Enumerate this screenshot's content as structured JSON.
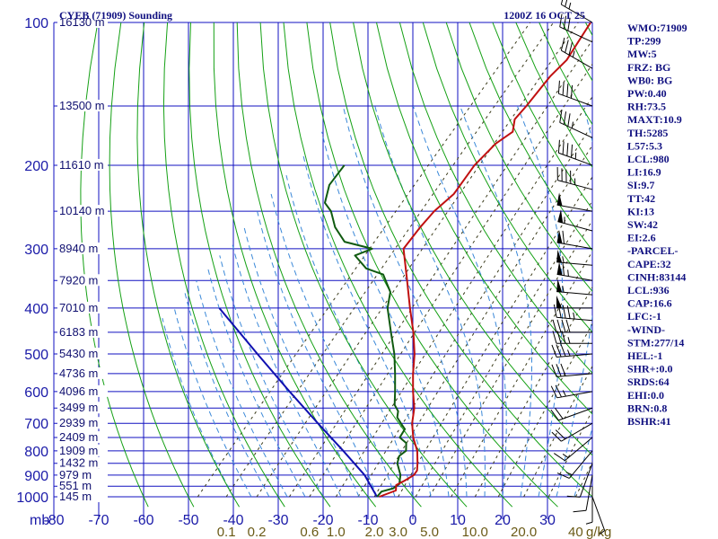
{
  "header": {
    "station": "CYEB (71909) Sounding",
    "time": "1200Z 16 OCT 25"
  },
  "indices": [
    "WMO:71909",
    "TP:299",
    "MW:5",
    "FRZ: BG",
    "WB0: BG",
    "PW:0.40",
    "RH:73.5",
    "MAXT:10.9",
    "TH:5285",
    "L57:5.3",
    "LCL:980",
    "LI:16.9",
    "SI:9.7",
    "TT:42",
    "KI:13",
    "SW:42",
    "EI:2.6",
    "-PARCEL-",
    "CAPE:32",
    "CINH:83144",
    "LCL:936",
    "CAP:16.6",
    "LFC:-1",
    "-WIND-",
    "STM:277/14",
    "HEL:-1",
    "SHR+:0.0",
    "SRDS:64",
    "EHI:0.0",
    "BRN:0.8",
    "BSHR:41"
  ],
  "colors": {
    "grid": "#1010c0",
    "temperature": "#c01010",
    "dewpoint": "#105a10",
    "parcel": "#1010b0",
    "dry_adiabat": "#14a014",
    "moist_adiabat": "#3a88d8",
    "mixing_ratio": "#3a3a1a",
    "wind_barbs": "#000000"
  },
  "chart_data": {
    "type": "skew-t",
    "pressure_levels": [
      {
        "p": 100,
        "label": "100",
        "height": "16130 m"
      },
      {
        "p": 150,
        "label": "",
        "height": "13500 m"
      },
      {
        "p": 200,
        "label": "200",
        "height": "11610 m"
      },
      {
        "p": 250,
        "label": "",
        "height": "10140 m"
      },
      {
        "p": 300,
        "label": "300",
        "height": "8940 m"
      },
      {
        "p": 350,
        "label": "",
        "height": "7920 m"
      },
      {
        "p": 400,
        "label": "400",
        "height": "7010 m"
      },
      {
        "p": 450,
        "label": "",
        "height": "6183 m"
      },
      {
        "p": 500,
        "label": "500",
        "height": "5430 m"
      },
      {
        "p": 550,
        "label": "",
        "height": "4736 m"
      },
      {
        "p": 600,
        "label": "600",
        "height": "4096 m"
      },
      {
        "p": 650,
        "label": "",
        "height": "3499 m"
      },
      {
        "p": 700,
        "label": "700",
        "height": "2939 m"
      },
      {
        "p": 750,
        "label": "",
        "height": "2409 m"
      },
      {
        "p": 800,
        "label": "800",
        "height": "1909 m"
      },
      {
        "p": 850,
        "label": "",
        "height": "1432 m"
      },
      {
        "p": 900,
        "label": "900",
        "height": "979 m"
      },
      {
        "p": 950,
        "label": "",
        "height": "551 m"
      },
      {
        "p": 1000,
        "label": "1000",
        "height": "145 m"
      }
    ],
    "pressure_unit": "mb",
    "temperature_ticks": [
      "-80",
      "-70",
      "-60",
      "-50",
      "-40",
      "-30",
      "-20",
      "-10",
      "0",
      "10",
      "20",
      "30"
    ],
    "temperature_tick_values": [
      -80,
      -70,
      -60,
      -50,
      -40,
      -30,
      -20,
      -10,
      0,
      10,
      20,
      30
    ],
    "mixing_ratio_labels": [
      {
        "value": 0.1,
        "label": "0.1"
      },
      {
        "value": 0.2,
        "label": "0.2"
      },
      {
        "value": 0.6,
        "label": "0.6"
      },
      {
        "value": 1.0,
        "label": "1.0"
      },
      {
        "value": 2.0,
        "label": "2.0"
      },
      {
        "value": 3.0,
        "label": "3.0"
      },
      {
        "value": 5.0,
        "label": "5.0"
      },
      {
        "value": 10.0,
        "label": "10.0"
      },
      {
        "value": 20.0,
        "label": "20.0"
      },
      {
        "value": 40.0,
        "label": "40"
      }
    ],
    "mixing_ratio_unit": "g/kg",
    "temperature_profile": [
      {
        "p": 1000,
        "t": -7.5
      },
      {
        "p": 970,
        "t": -5.0
      },
      {
        "p": 945,
        "t": -6.0
      },
      {
        "p": 925,
        "t": -5.0
      },
      {
        "p": 900,
        "t": -4.0
      },
      {
        "p": 880,
        "t": -4.2
      },
      {
        "p": 850,
        "t": -5.5
      },
      {
        "p": 800,
        "t": -8.0
      },
      {
        "p": 750,
        "t": -11.5
      },
      {
        "p": 700,
        "t": -14.5
      },
      {
        "p": 650,
        "t": -17.0
      },
      {
        "p": 600,
        "t": -20.5
      },
      {
        "p": 550,
        "t": -24.0
      },
      {
        "p": 500,
        "t": -27.5
      },
      {
        "p": 450,
        "t": -32.0
      },
      {
        "p": 400,
        "t": -37.5
      },
      {
        "p": 350,
        "t": -43.5
      },
      {
        "p": 300,
        "t": -50.5
      },
      {
        "p": 270,
        "t": -51.0
      },
      {
        "p": 250,
        "t": -51.0
      },
      {
        "p": 230,
        "t": -50.0
      },
      {
        "p": 200,
        "t": -51.0
      },
      {
        "p": 180,
        "t": -50.5
      },
      {
        "p": 170,
        "t": -49.0
      },
      {
        "p": 160,
        "t": -51.0
      },
      {
        "p": 150,
        "t": -51.0
      },
      {
        "p": 130,
        "t": -51.5
      },
      {
        "p": 120,
        "t": -51.0
      },
      {
        "p": 100,
        "t": -53.0
      }
    ],
    "dewpoint_profile": [
      {
        "p": 1000,
        "t": -8.0
      },
      {
        "p": 975,
        "t": -8.0
      },
      {
        "p": 960,
        "t": -6.0
      },
      {
        "p": 940,
        "t": -5.5
      },
      {
        "p": 900,
        "t": -7.0
      },
      {
        "p": 850,
        "t": -10.0
      },
      {
        "p": 820,
        "t": -11.0
      },
      {
        "p": 800,
        "t": -10.5
      },
      {
        "p": 770,
        "t": -12.0
      },
      {
        "p": 750,
        "t": -14.5
      },
      {
        "p": 720,
        "t": -15.0
      },
      {
        "p": 700,
        "t": -17.0
      },
      {
        "p": 680,
        "t": -19.0
      },
      {
        "p": 660,
        "t": -20.0
      },
      {
        "p": 640,
        "t": -22.0
      },
      {
        "p": 600,
        "t": -24.5
      },
      {
        "p": 550,
        "t": -28.0
      },
      {
        "p": 500,
        "t": -32.0
      },
      {
        "p": 450,
        "t": -37.0
      },
      {
        "p": 400,
        "t": -42.5
      },
      {
        "p": 370,
        "t": -45.0
      },
      {
        "p": 340,
        "t": -50.0
      },
      {
        "p": 330,
        "t": -55.0
      },
      {
        "p": 310,
        "t": -60.0
      },
      {
        "p": 300,
        "t": -57.5
      },
      {
        "p": 290,
        "t": -65.0
      },
      {
        "p": 270,
        "t": -70.0
      },
      {
        "p": 250,
        "t": -74.0
      },
      {
        "p": 240,
        "t": -77.0
      },
      {
        "p": 220,
        "t": -79.5
      },
      {
        "p": 200,
        "t": -80.0
      }
    ],
    "parcel_path": [
      {
        "p": 1000,
        "t": -8.0
      },
      {
        "p": 900,
        "t": -15.0
      },
      {
        "p": 800,
        "t": -24.5
      },
      {
        "p": 700,
        "t": -35.5
      },
      {
        "p": 600,
        "t": -48.0
      },
      {
        "p": 500,
        "t": -62.5
      },
      {
        "p": 400,
        "t": -80.0
      }
    ],
    "wind_barbs": [
      {
        "p": 100,
        "dir": 300,
        "spd": 25
      },
      {
        "p": 110,
        "dir": 295,
        "spd": 30
      },
      {
        "p": 125,
        "dir": 300,
        "spd": 35
      },
      {
        "p": 150,
        "dir": 290,
        "spd": 40
      },
      {
        "p": 175,
        "dir": 295,
        "spd": 35
      },
      {
        "p": 200,
        "dir": 290,
        "spd": 45
      },
      {
        "p": 225,
        "dir": 285,
        "spd": 45
      },
      {
        "p": 250,
        "dir": 280,
        "spd": 50
      },
      {
        "p": 275,
        "dir": 285,
        "spd": 55
      },
      {
        "p": 300,
        "dir": 280,
        "spd": 60
      },
      {
        "p": 325,
        "dir": 275,
        "spd": 55
      },
      {
        "p": 350,
        "dir": 280,
        "spd": 65
      },
      {
        "p": 375,
        "dir": 275,
        "spd": 55
      },
      {
        "p": 400,
        "dir": 270,
        "spd": 50
      },
      {
        "p": 425,
        "dir": 275,
        "spd": 45
      },
      {
        "p": 450,
        "dir": 270,
        "spd": 40
      },
      {
        "p": 475,
        "dir": 270,
        "spd": 35
      },
      {
        "p": 500,
        "dir": 265,
        "spd": 35
      },
      {
        "p": 550,
        "dir": 265,
        "spd": 30
      },
      {
        "p": 600,
        "dir": 260,
        "spd": 25
      },
      {
        "p": 650,
        "dir": 250,
        "spd": 20
      },
      {
        "p": 700,
        "dir": 240,
        "spd": 20
      },
      {
        "p": 750,
        "dir": 230,
        "spd": 15
      },
      {
        "p": 800,
        "dir": 220,
        "spd": 15
      },
      {
        "p": 850,
        "dir": 200,
        "spd": 10
      },
      {
        "p": 900,
        "dir": 190,
        "spd": 10
      },
      {
        "p": 950,
        "dir": 180,
        "spd": 5
      },
      {
        "p": 1000,
        "dir": 160,
        "spd": 5
      }
    ]
  }
}
